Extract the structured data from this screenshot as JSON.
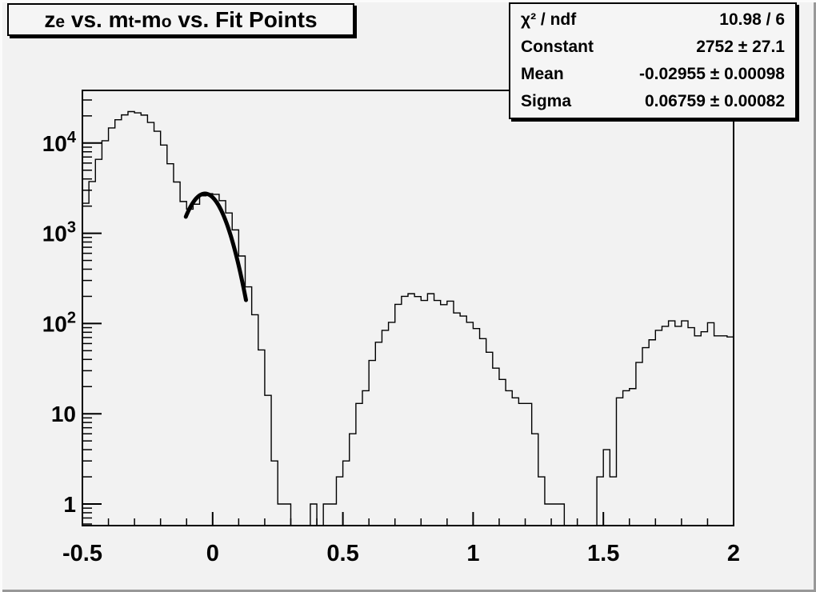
{
  "window": {
    "background": "#f2f2f2",
    "bevel_light": "#fbfbfb",
    "bevel_dark": "#989898",
    "line_color": "#000000",
    "pave_fill": "#f5f5f5"
  },
  "title": {
    "parts": [
      {
        "t": "z"
      },
      {
        "t": "e",
        "sub": true
      },
      {
        "t": " vs. m"
      },
      {
        "t": "t",
        "sub": true
      },
      {
        "t": "-m"
      },
      {
        "t": "o",
        "sub": true
      },
      {
        "t": " vs. Fit Points"
      }
    ]
  },
  "stats_box": {
    "rows": [
      {
        "label": "χ² / ndf",
        "value": "10.98 / 6"
      },
      {
        "label": "Constant",
        "value": "2752 ± 27.1"
      },
      {
        "label": "Mean",
        "value": "-0.02955 ± 0.00098"
      },
      {
        "label": "Sigma",
        "value": "0.06759 ± 0.00082"
      }
    ]
  },
  "chart_data": {
    "type": "histogram",
    "title": "z_e vs. m_t-m_o vs. Fit Points",
    "grid": false,
    "x_axis": {
      "scale": "linear",
      "min": -0.5,
      "max": 2,
      "major_ticks": [
        -0.5,
        0,
        0.5,
        1,
        1.5,
        2
      ],
      "major_labels": [
        "-0.5",
        "0",
        "0.5",
        "1",
        "1.5",
        "2"
      ],
      "minor_tick_step": 0.1
    },
    "y_axis": {
      "scale": "log",
      "min": 0.58,
      "max": 38000,
      "major_ticks": [
        1,
        10,
        100,
        1000,
        10000
      ],
      "major_labels": [
        {
          "base": "1"
        },
        {
          "base": "10"
        },
        {
          "base": "10",
          "exp": "2"
        },
        {
          "base": "10",
          "exp": "3"
        },
        {
          "base": "10",
          "exp": "4"
        }
      ]
    },
    "bins": {
      "start": -0.5,
      "width": 0.025,
      "counts": [
        2150,
        3740,
        6600,
        10600,
        14700,
        18100,
        20500,
        22300,
        21600,
        20400,
        16900,
        13500,
        9500,
        5900,
        3700,
        2250,
        1850,
        2100,
        2600,
        2750,
        2700,
        2300,
        1680,
        1090,
        560,
        255,
        125,
        51,
        16,
        3,
        1,
        1,
        0,
        0,
        0,
        1,
        0,
        1,
        1,
        2,
        3,
        6,
        13,
        18,
        39,
        62,
        84,
        103,
        163,
        200,
        214,
        199,
        180,
        214,
        180,
        162,
        177,
        131,
        121,
        103,
        88,
        68,
        48,
        32,
        24,
        18,
        15,
        13,
        13,
        6,
        2,
        1,
        1,
        1,
        0,
        0,
        0,
        0,
        0,
        2,
        4,
        2,
        15,
        18,
        19,
        37,
        54,
        66,
        84,
        93,
        107,
        93,
        107,
        90,
        73,
        81,
        102,
        73,
        73,
        71
      ]
    },
    "fit": {
      "type": "gaussian",
      "chi2": 10.98,
      "ndf": 6,
      "constant": 2752,
      "constant_err": 27.1,
      "mean": -0.02955,
      "mean_err": 0.00098,
      "sigma": 0.06759,
      "sigma_err": 0.00082,
      "draw_range": [
        -0.103,
        0.128
      ]
    }
  }
}
